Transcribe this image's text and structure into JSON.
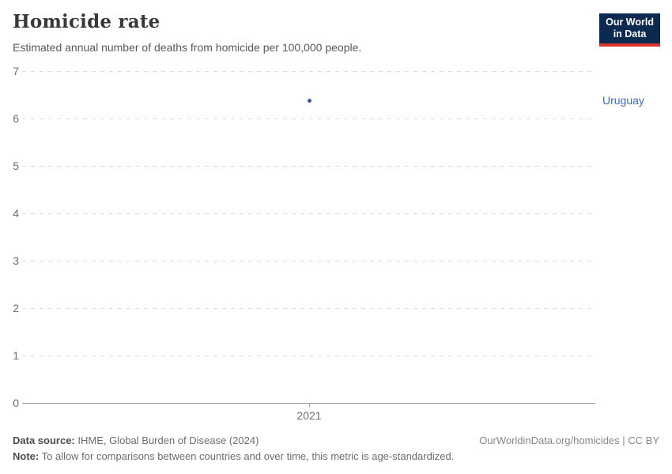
{
  "header": {
    "title": "Homicide rate",
    "subtitle": "Estimated annual number of deaths from homicide per 100,000 people.",
    "logo_line1": "Our World",
    "logo_line2": "in Data"
  },
  "chart_data": {
    "type": "scatter",
    "title": "Homicide rate",
    "subtitle": "Estimated annual number of deaths from homicide per 100,000 people.",
    "series": [
      {
        "name": "Uruguay",
        "x": [
          2021
        ],
        "values": [
          6.38
        ]
      }
    ],
    "x_tick_labels": [
      "2021"
    ],
    "y_ticks": [
      0,
      1,
      2,
      3,
      4,
      5,
      6,
      7
    ],
    "ylim": [
      0,
      7
    ],
    "xlabel": "",
    "ylabel": "",
    "grid": "horizontal-dashed",
    "legend_position": "entity-label-right-of-point"
  },
  "footer": {
    "data_source_label": "Data source:",
    "data_source_value": " IHME, Global Burden of Disease (2024)",
    "note_label": "Note:",
    "note_value": " To allow for comparisons between countries and over time, this metric is age-standardized.",
    "link": "OurWorldinData.org/homicides | CC BY"
  },
  "colors": {
    "series_point": "#3c5a96",
    "series_label": "#3d6bc5",
    "logo_bg": "#0c2a50",
    "logo_red": "#dc352c",
    "gridline": "#dcdcdc",
    "axis": "#9e9e9e",
    "tick_label": "#6e6e6e"
  }
}
